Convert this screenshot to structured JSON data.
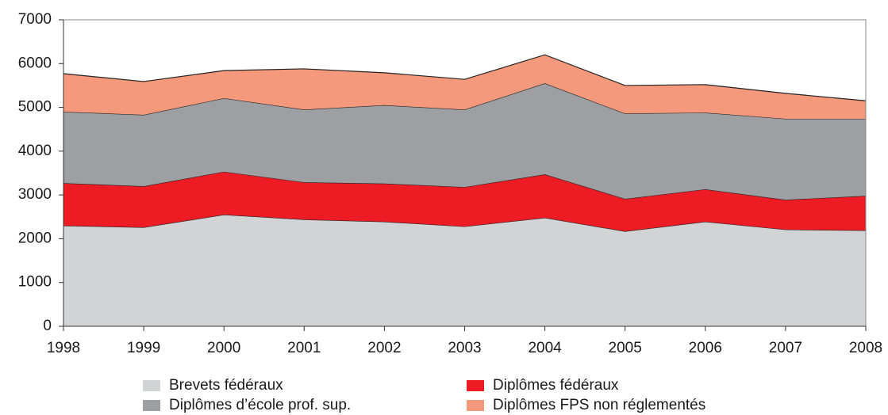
{
  "chart_data": {
    "type": "stacked_area",
    "x": [
      1998,
      1999,
      2000,
      2001,
      2002,
      2003,
      2004,
      2005,
      2006,
      2007,
      2008
    ],
    "series": [
      {
        "name": "Brevets fédéraux",
        "color": "#d1d3d4",
        "values": [
          2300,
          2260,
          2550,
          2440,
          2390,
          2280,
          2480,
          2170,
          2390,
          2210,
          2190
        ]
      },
      {
        "name": "Diplômes fédéraux",
        "color": "#ed1c24",
        "values": [
          970,
          940,
          980,
          850,
          870,
          900,
          990,
          740,
          740,
          680,
          790
        ]
      },
      {
        "name": "Diplômes d’école prof. sup.",
        "color": "#9d9fa2",
        "values": [
          1630,
          1630,
          1680,
          1660,
          1790,
          1770,
          2080,
          1950,
          1750,
          1850,
          1760
        ]
      },
      {
        "name": "Diplômes FPS non réglementés",
        "color": "#f4997b",
        "values": [
          870,
          760,
          630,
          930,
          740,
          690,
          650,
          640,
          640,
          580,
          410
        ]
      }
    ],
    "xlim": [
      1998,
      2008
    ],
    "xticks": [
      1998,
      1999,
      2000,
      2001,
      2002,
      2003,
      2004,
      2005,
      2006,
      2007,
      2008
    ],
    "ylim": [
      0,
      7000
    ],
    "yticks": [
      0,
      1000,
      2000,
      3000,
      4000,
      5000,
      6000,
      7000
    ],
    "legend": "bottom"
  }
}
